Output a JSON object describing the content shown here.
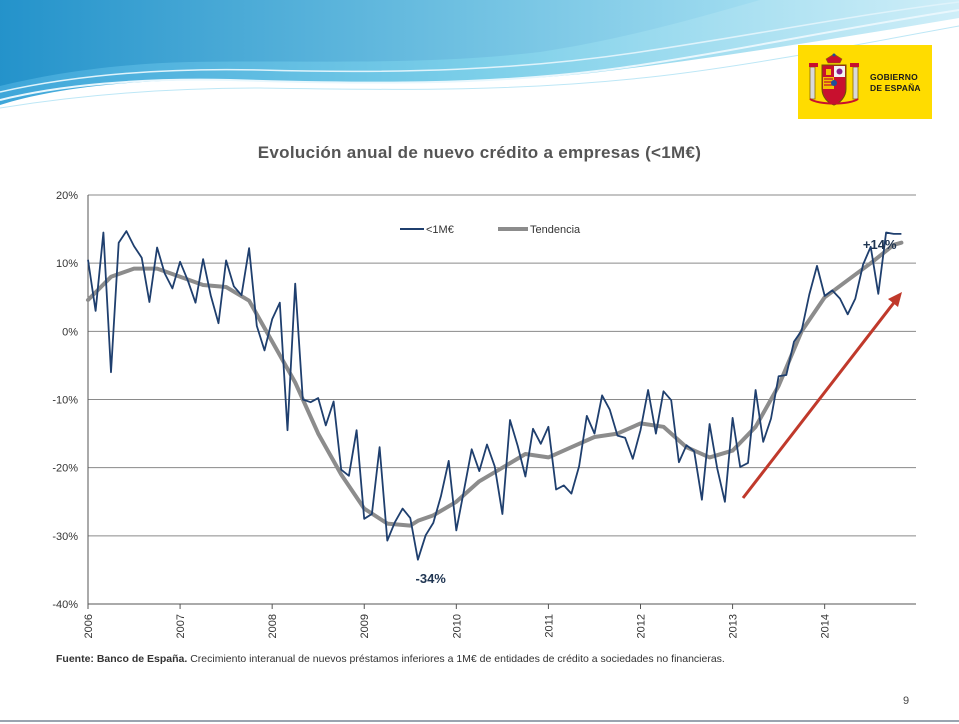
{
  "logo": {
    "line1": "GOBIERNO",
    "line2": "DE ESPAÑA",
    "background": "#ffdc00",
    "icon": "coat-of-arms-icon"
  },
  "page_number": "9",
  "source": {
    "bold": "Fuente: Banco de España.",
    "text": "Crecimiento interanual de nuevos préstamos inferiores a 1M€ de entidades de crédito a sociedades no financieras."
  },
  "chart_data": {
    "type": "line",
    "title": "Evolución anual de nuevo crédito a empresas (<1M€)",
    "xlabel": "",
    "ylabel": "",
    "ylim": [
      -40,
      20
    ],
    "xlim": [
      2006,
      2014.992
    ],
    "yticks": [
      20,
      10,
      0,
      -10,
      -20,
      -30,
      -40
    ],
    "ytick_labels": [
      "20%",
      "10%",
      "0%",
      "-10%",
      "-20%",
      "-30%",
      "-40%"
    ],
    "xticks": [
      2006,
      2007,
      2008,
      2009,
      2010,
      2011,
      2012,
      2013,
      2014
    ],
    "xtick_labels": [
      "2006",
      "2007",
      "2008",
      "2009",
      "2010",
      "2011",
      "2012",
      "2013",
      "2014"
    ],
    "grid": "horizontal",
    "legend_position": "top-center",
    "colors": {
      "monthly": "#1f3f6e",
      "trend": "#8c8c8c",
      "arrow": "#c0392b",
      "grid": "#8a8a8a"
    },
    "annotations": [
      {
        "text": "-34%",
        "x": 2009.7,
        "y": -34
      },
      {
        "text": "+14%",
        "x": 2014.75,
        "y": 14
      }
    ],
    "series": [
      {
        "name": "<1M€",
        "x": [
          2006,
          2006.083,
          2006.167,
          2006.25,
          2006.333,
          2006.417,
          2006.5,
          2006.583,
          2006.667,
          2006.75,
          2006.833,
          2006.917,
          2007,
          2007.083,
          2007.167,
          2007.25,
          2007.333,
          2007.417,
          2007.5,
          2007.583,
          2007.667,
          2007.75,
          2007.833,
          2007.917,
          2008,
          2008.083,
          2008.167,
          2008.25,
          2008.333,
          2008.417,
          2008.5,
          2008.583,
          2008.667,
          2008.75,
          2008.833,
          2008.917,
          2009,
          2009.083,
          2009.167,
          2009.25,
          2009.333,
          2009.417,
          2009.5,
          2009.583,
          2009.667,
          2009.75,
          2009.833,
          2009.917,
          2010,
          2010.083,
          2010.167,
          2010.25,
          2010.333,
          2010.417,
          2010.5,
          2010.583,
          2010.667,
          2010.75,
          2010.833,
          2010.917,
          2011,
          2011.083,
          2011.167,
          2011.25,
          2011.333,
          2011.417,
          2011.5,
          2011.583,
          2011.667,
          2011.75,
          2011.833,
          2011.917,
          2012,
          2012.083,
          2012.167,
          2012.25,
          2012.333,
          2012.417,
          2012.5,
          2012.583,
          2012.667,
          2012.75,
          2012.833,
          2012.917,
          2013,
          2013.083,
          2013.167,
          2013.25,
          2013.333,
          2013.417,
          2013.5,
          2013.583,
          2013.667,
          2013.75,
          2013.833,
          2013.917,
          2014,
          2014.083,
          2014.167,
          2014.25,
          2014.333,
          2014.417,
          2014.5,
          2014.583,
          2014.667,
          2014.75,
          2014.833
        ],
        "values": [
          10.5,
          3,
          14.5,
          -6,
          13,
          14.7,
          12.5,
          10.8,
          4.3,
          12.3,
          8.5,
          6.3,
          10.2,
          7.5,
          4.2,
          10.6,
          5.3,
          1.2,
          10.4,
          6.6,
          5.3,
          12.2,
          0.8,
          -2.8,
          1.8,
          4.2,
          -14.5,
          7,
          -10,
          -10.4,
          -9.8,
          -13.8,
          -10.3,
          -20.3,
          -21.2,
          -14.5,
          -27.5,
          -26.8,
          -17,
          -30.7,
          -28,
          -26,
          -27.4,
          -33.5,
          -29.9,
          -28.1,
          -24.2,
          -19,
          -29.2,
          -23.3,
          -17.3,
          -20.5,
          -16.6,
          -19.8,
          -26.8,
          -13,
          -16.8,
          -21.3,
          -14.3,
          -16.5,
          -14,
          -23.2,
          -22.6,
          -23.8,
          -19.8,
          -12.4,
          -15,
          -9.4,
          -11.5,
          -15.3,
          -15.6,
          -18.7,
          -14.5,
          -8.6,
          -15,
          -8.8,
          -10.1,
          -19.2,
          -16.7,
          -17.6,
          -24.7,
          -13.6,
          -20.1,
          -25,
          -12.7,
          -19.9,
          -19.3,
          -8.6,
          -16.2,
          -12.8,
          -6.6,
          -6.4,
          -1.5,
          0.1,
          5.4,
          9.6,
          5.2,
          6,
          4.8,
          2.5,
          4.8,
          9.8,
          12.4,
          5.5,
          14.5,
          14.3,
          14.3
        ]
      },
      {
        "name": "Tendencia",
        "x": [
          2006,
          2006.25,
          2006.5,
          2006.75,
          2007,
          2007.25,
          2007.5,
          2007.75,
          2008,
          2008.25,
          2008.5,
          2008.75,
          2009,
          2009.25,
          2009.5,
          2009.583,
          2009.75,
          2010,
          2010.25,
          2010.5,
          2010.75,
          2011,
          2011.25,
          2011.5,
          2011.75,
          2012,
          2012.25,
          2012.5,
          2012.75,
          2013,
          2013.25,
          2013.5,
          2013.75,
          2014,
          2014.25,
          2014.5,
          2014.75,
          2014.833
        ],
        "values": [
          4.6,
          8,
          9.2,
          9.2,
          8,
          6.8,
          6.5,
          4.5,
          -1.5,
          -7.5,
          -15,
          -21,
          -26,
          -28.2,
          -28.5,
          -27.8,
          -27,
          -25,
          -22,
          -20,
          -18,
          -18.5,
          -17,
          -15.5,
          -15,
          -13.5,
          -14,
          -17,
          -18.5,
          -17.5,
          -14,
          -8,
          0,
          5,
          7.5,
          10,
          12.7,
          13
        ]
      }
    ]
  }
}
